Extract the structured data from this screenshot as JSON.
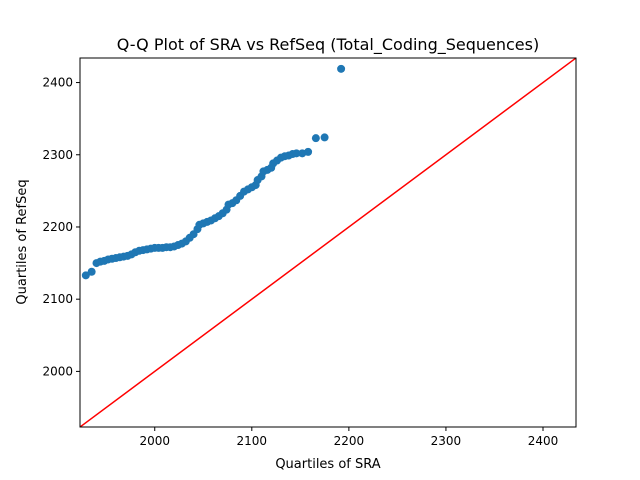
{
  "chart_data": {
    "type": "scatter",
    "title": "Q-Q Plot of SRA vs RefSeq (Total_Coding_Sequences)",
    "xlabel": "Quartiles of SRA",
    "ylabel": "Quartiles of RefSeq",
    "xlim": [
      1923,
      2434
    ],
    "ylim": [
      1923,
      2434
    ],
    "x_ticks": [
      2000,
      2100,
      2200,
      2300,
      2400
    ],
    "y_ticks": [
      2000,
      2100,
      2200,
      2300,
      2400
    ],
    "grid": false,
    "series": [
      {
        "marker_color": "#1f77b4",
        "points": [
          [
            1929,
            2133
          ],
          [
            1935,
            2138
          ],
          [
            1940,
            2150
          ],
          [
            1944,
            2152
          ],
          [
            1948,
            2153
          ],
          [
            1952,
            2155
          ],
          [
            1956,
            2156
          ],
          [
            1960,
            2157
          ],
          [
            1964,
            2158
          ],
          [
            1968,
            2159
          ],
          [
            1972,
            2160
          ],
          [
            1976,
            2162
          ],
          [
            1980,
            2165
          ],
          [
            1984,
            2167
          ],
          [
            1988,
            2168
          ],
          [
            1992,
            2169
          ],
          [
            1996,
            2170
          ],
          [
            2000,
            2171
          ],
          [
            2004,
            2171
          ],
          [
            2008,
            2171
          ],
          [
            2012,
            2172
          ],
          [
            2016,
            2172
          ],
          [
            2020,
            2173
          ],
          [
            2024,
            2175
          ],
          [
            2028,
            2177
          ],
          [
            2032,
            2180
          ],
          [
            2036,
            2185
          ],
          [
            2040,
            2190
          ],
          [
            2044,
            2197
          ],
          [
            2046,
            2203
          ],
          [
            2050,
            2205
          ],
          [
            2054,
            2207
          ],
          [
            2058,
            2209
          ],
          [
            2062,
            2212
          ],
          [
            2066,
            2215
          ],
          [
            2070,
            2219
          ],
          [
            2074,
            2224
          ],
          [
            2076,
            2231
          ],
          [
            2080,
            2233
          ],
          [
            2084,
            2237
          ],
          [
            2088,
            2243
          ],
          [
            2092,
            2249
          ],
          [
            2096,
            2252
          ],
          [
            2100,
            2255
          ],
          [
            2104,
            2258
          ],
          [
            2106,
            2265
          ],
          [
            2110,
            2270
          ],
          [
            2112,
            2277
          ],
          [
            2116,
            2279
          ],
          [
            2120,
            2282
          ],
          [
            2122,
            2288
          ],
          [
            2126,
            2292
          ],
          [
            2130,
            2296
          ],
          [
            2134,
            2298
          ],
          [
            2138,
            2299
          ],
          [
            2142,
            2301
          ],
          [
            2146,
            2302
          ],
          [
            2152,
            2302
          ],
          [
            2158,
            2304
          ],
          [
            2166,
            2323
          ],
          [
            2175,
            2324
          ],
          [
            2192,
            2419
          ]
        ]
      }
    ],
    "reference_line": {
      "type": "y=x",
      "color": "#ff0000"
    }
  }
}
